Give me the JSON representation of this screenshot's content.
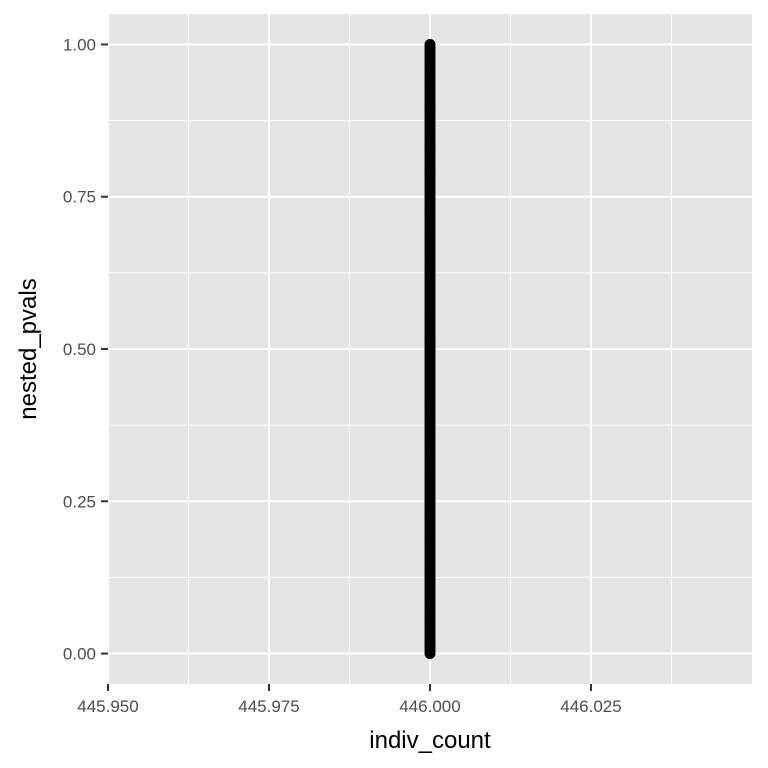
{
  "chart_data": {
    "type": "scatter",
    "title": "",
    "xlabel": "indiv_count",
    "ylabel": "nested_pvals",
    "xlim": [
      445.95,
      446.05
    ],
    "ylim": [
      -0.05,
      1.05
    ],
    "x_ticks": [
      445.95,
      445.975,
      446.0,
      446.025
    ],
    "x_tick_labels": [
      "445.950",
      "445.975",
      "446.000",
      "446.025"
    ],
    "y_ticks": [
      0.0,
      0.25,
      0.5,
      0.75,
      1.0
    ],
    "y_tick_labels": [
      "0.00",
      "0.25",
      "0.50",
      "0.75",
      "1.00"
    ],
    "x": 446.0,
    "y_range": [
      0.0,
      1.0
    ],
    "grid": true,
    "panel_color": "#e5e5e5",
    "grid_color": "#ffffff",
    "point_color": "#000000"
  }
}
